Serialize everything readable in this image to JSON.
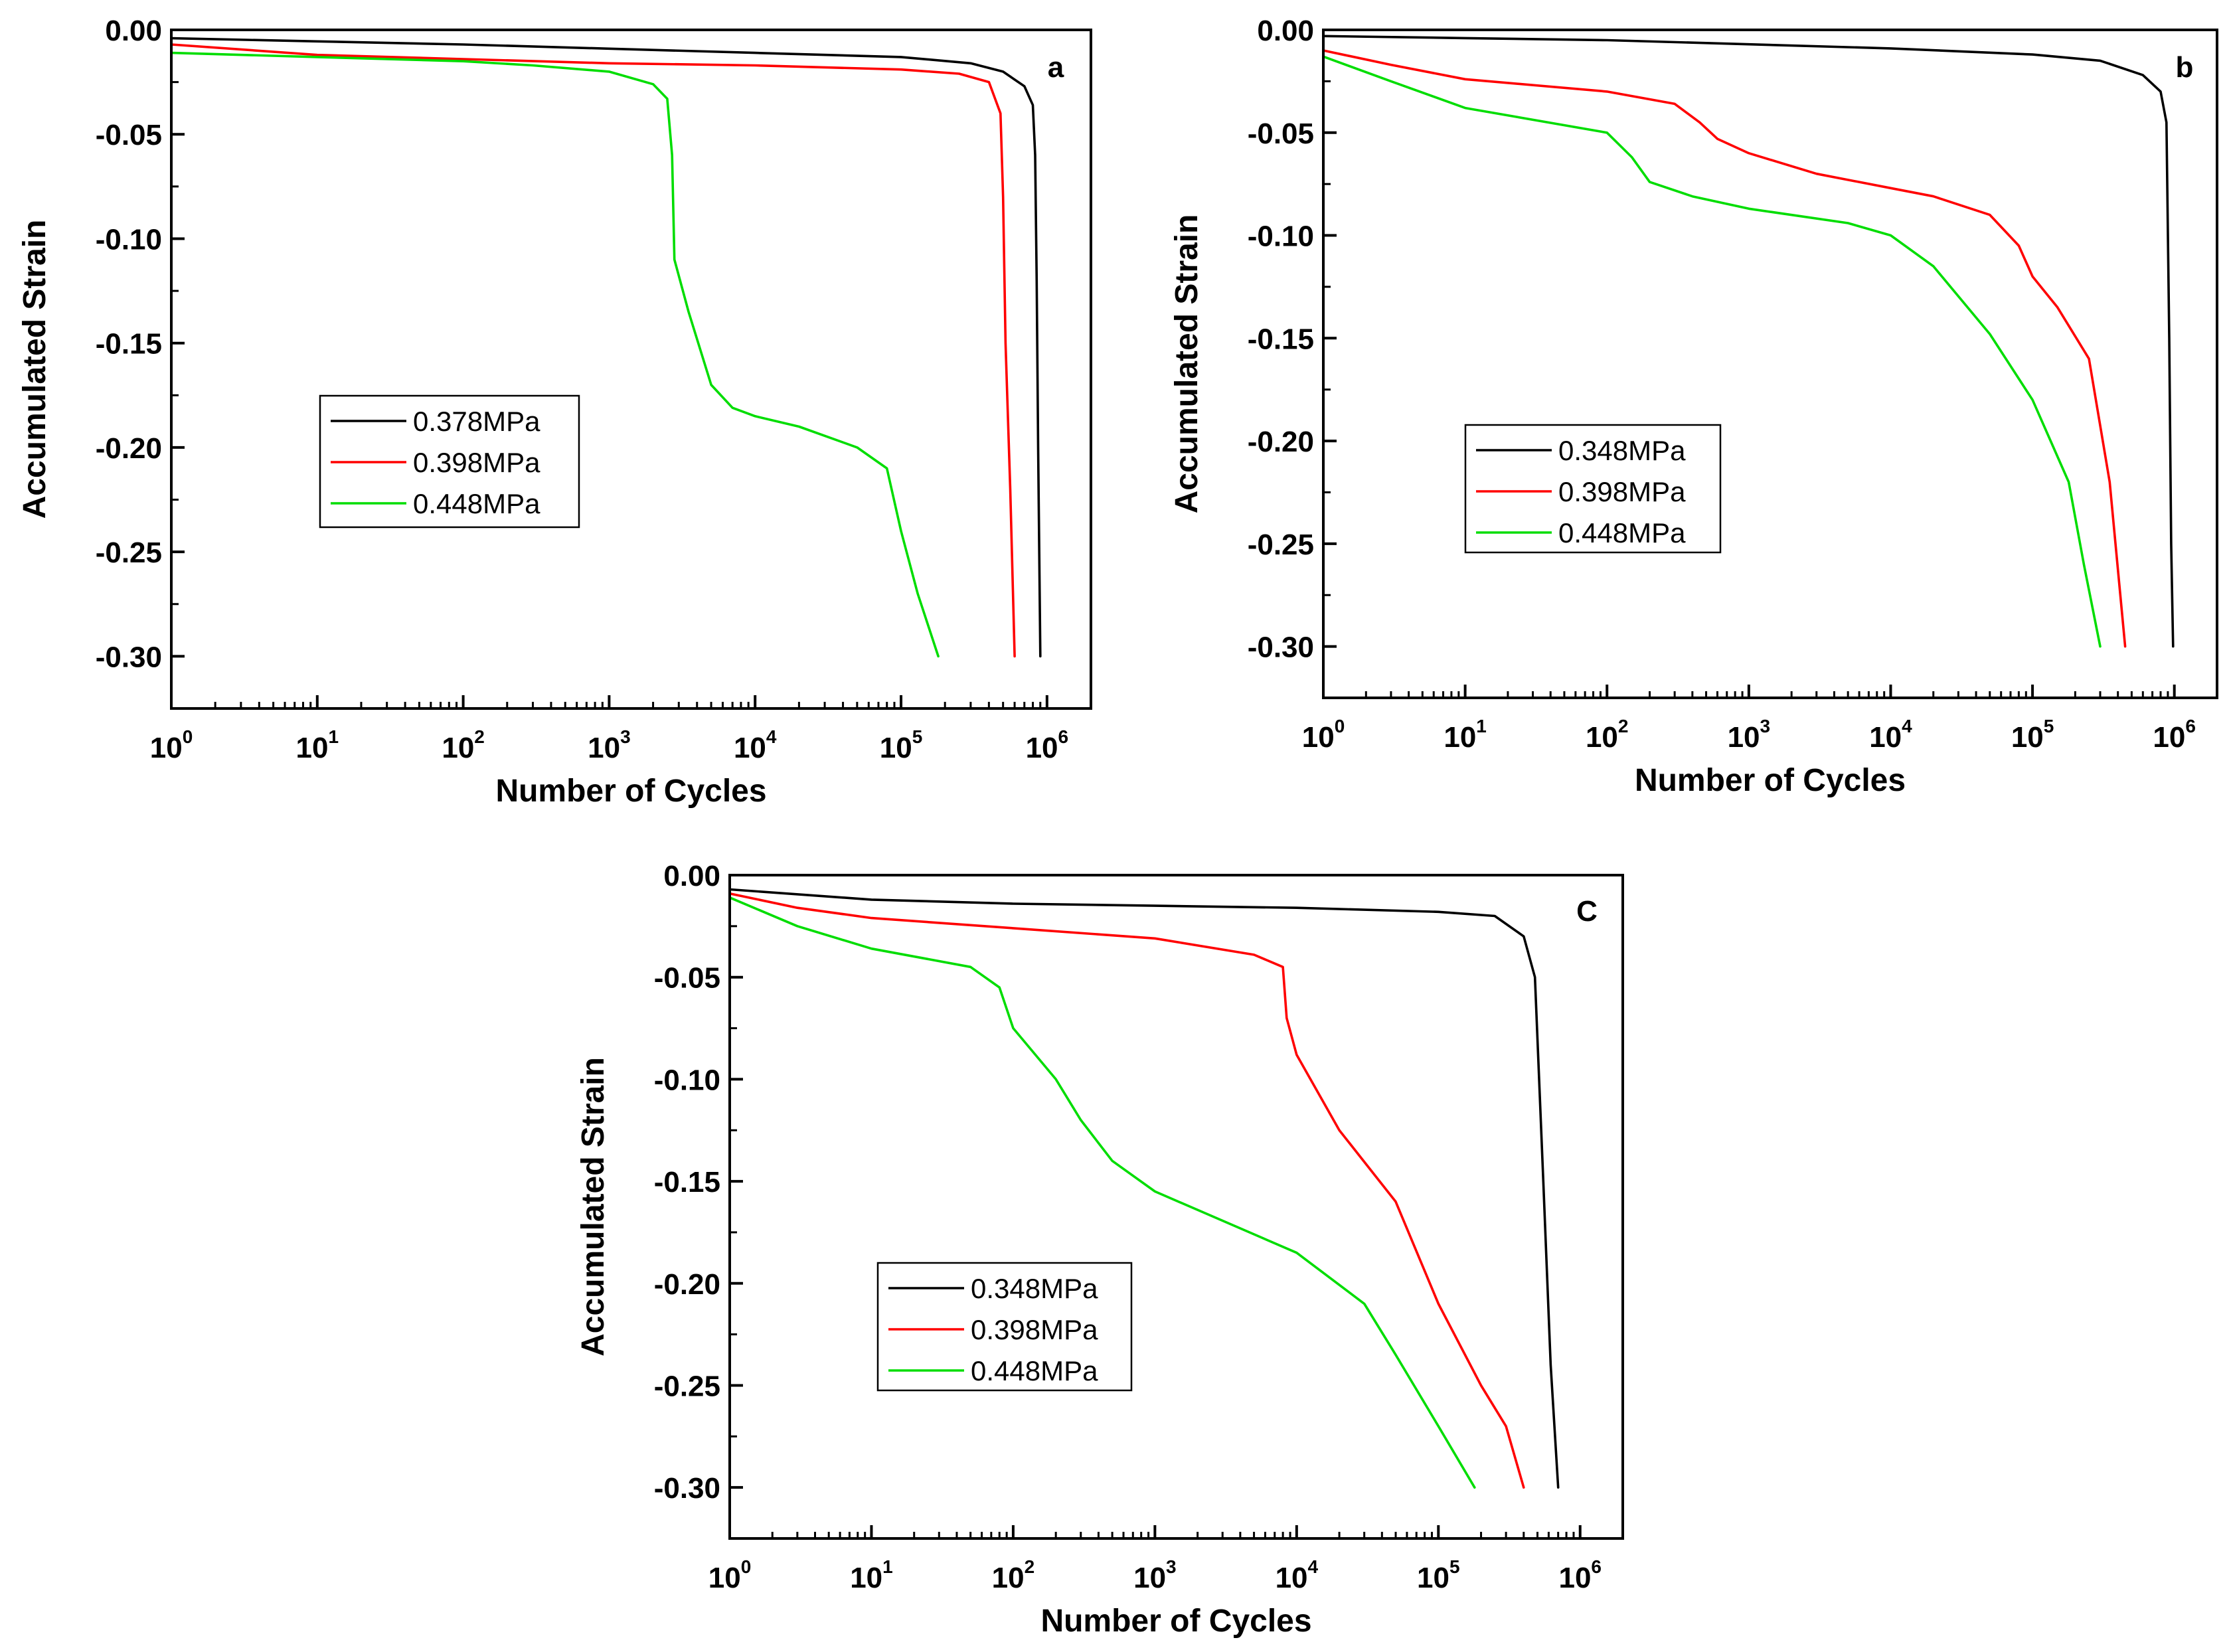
{
  "chart_data": [
    {
      "panel_label": "a",
      "type": "line",
      "xlabel": "Number of Cycles",
      "ylabel": "Accumulated Strain",
      "x_scale": "log",
      "xlim": [
        1,
        2000000
      ],
      "ylim": [
        -0.325,
        0.0
      ],
      "x_ticks": [
        {
          "value": 1,
          "base": "10",
          "exp": "0"
        },
        {
          "value": 10,
          "base": "10",
          "exp": "1"
        },
        {
          "value": 100,
          "base": "10",
          "exp": "2"
        },
        {
          "value": 1000,
          "base": "10",
          "exp": "3"
        },
        {
          "value": 10000,
          "base": "10",
          "exp": "4"
        },
        {
          "value": 100000,
          "base": "10",
          "exp": "5"
        },
        {
          "value": 1000000,
          "base": "10",
          "exp": "6"
        }
      ],
      "y_ticks": [
        {
          "value": 0.0,
          "label": "0.00"
        },
        {
          "value": -0.05,
          "label": "-0.05"
        },
        {
          "value": -0.1,
          "label": "-0.10"
        },
        {
          "value": -0.15,
          "label": "-0.15"
        },
        {
          "value": -0.2,
          "label": "-0.20"
        },
        {
          "value": -0.25,
          "label": "-0.25"
        },
        {
          "value": -0.3,
          "label": "-0.30"
        }
      ],
      "grid": false,
      "legend_position": "center-left",
      "series": [
        {
          "name": "0.378MPa",
          "color": "#000000",
          "points": [
            [
              1,
              -0.004
            ],
            [
              10,
              -0.0055
            ],
            [
              100,
              -0.007
            ],
            [
              1000,
              -0.009
            ],
            [
              10000,
              -0.011
            ],
            [
              100000,
              -0.013
            ],
            [
              300000,
              -0.016
            ],
            [
              500000,
              -0.02
            ],
            [
              700000,
              -0.027
            ],
            [
              800000,
              -0.036
            ],
            [
              830000,
              -0.06
            ],
            [
              850000,
              -0.12
            ],
            [
              870000,
              -0.2
            ],
            [
              900000,
              -0.3
            ]
          ]
        },
        {
          "name": "0.398MPa",
          "color": "#ff0000",
          "points": [
            [
              1,
              -0.007
            ],
            [
              10,
              -0.012
            ],
            [
              100,
              -0.014
            ],
            [
              1000,
              -0.016
            ],
            [
              10000,
              -0.017
            ],
            [
              100000,
              -0.019
            ],
            [
              250000,
              -0.021
            ],
            [
              400000,
              -0.025
            ],
            [
              480000,
              -0.04
            ],
            [
              500000,
              -0.08
            ],
            [
              520000,
              -0.15
            ],
            [
              560000,
              -0.22
            ],
            [
              600000,
              -0.3
            ]
          ]
        },
        {
          "name": "0.448MPa",
          "color": "#00dd00",
          "points": [
            [
              1,
              -0.011
            ],
            [
              10,
              -0.013
            ],
            [
              100,
              -0.015
            ],
            [
              300,
              -0.017
            ],
            [
              1000,
              -0.02
            ],
            [
              2000,
              -0.026
            ],
            [
              2500,
              -0.033
            ],
            [
              2700,
              -0.06
            ],
            [
              2800,
              -0.11
            ],
            [
              3500,
              -0.135
            ],
            [
              5000,
              -0.17
            ],
            [
              7000,
              -0.181
            ],
            [
              10000,
              -0.185
            ],
            [
              20000,
              -0.19
            ],
            [
              50000,
              -0.2
            ],
            [
              80000,
              -0.21
            ],
            [
              100000,
              -0.24
            ],
            [
              130000,
              -0.27
            ],
            [
              180000,
              -0.3
            ]
          ]
        }
      ]
    },
    {
      "panel_label": "b",
      "type": "line",
      "xlabel": "Number of Cycles",
      "ylabel": "Accumulated Strain",
      "x_scale": "log",
      "xlim": [
        1,
        2000000
      ],
      "ylim": [
        -0.325,
        0.0
      ],
      "x_ticks": [
        {
          "value": 1,
          "base": "10",
          "exp": "0"
        },
        {
          "value": 10,
          "base": "10",
          "exp": "1"
        },
        {
          "value": 100,
          "base": "10",
          "exp": "2"
        },
        {
          "value": 1000,
          "base": "10",
          "exp": "3"
        },
        {
          "value": 10000,
          "base": "10",
          "exp": "4"
        },
        {
          "value": 100000,
          "base": "10",
          "exp": "5"
        },
        {
          "value": 1000000,
          "base": "10",
          "exp": "6"
        }
      ],
      "y_ticks": [
        {
          "value": 0.0,
          "label": "0.00"
        },
        {
          "value": -0.05,
          "label": "-0.05"
        },
        {
          "value": -0.1,
          "label": "-0.10"
        },
        {
          "value": -0.15,
          "label": "-0.15"
        },
        {
          "value": -0.2,
          "label": "-0.20"
        },
        {
          "value": -0.25,
          "label": "-0.25"
        },
        {
          "value": -0.3,
          "label": "-0.30"
        }
      ],
      "grid": false,
      "legend_position": "center-left",
      "series": [
        {
          "name": "0.348MPa",
          "color": "#000000",
          "points": [
            [
              1,
              -0.003
            ],
            [
              10,
              -0.004
            ],
            [
              100,
              -0.005
            ],
            [
              1000,
              -0.007
            ],
            [
              10000,
              -0.009
            ],
            [
              100000,
              -0.012
            ],
            [
              300000,
              -0.015
            ],
            [
              600000,
              -0.022
            ],
            [
              800000,
              -0.03
            ],
            [
              880000,
              -0.045
            ],
            [
              920000,
              -0.15
            ],
            [
              950000,
              -0.25
            ],
            [
              980000,
              -0.3
            ]
          ]
        },
        {
          "name": "0.398MPa",
          "color": "#ff0000",
          "points": [
            [
              1,
              -0.01
            ],
            [
              3,
              -0.017
            ],
            [
              10,
              -0.024
            ],
            [
              100,
              -0.03
            ],
            [
              300,
              -0.036
            ],
            [
              450,
              -0.045
            ],
            [
              600,
              -0.053
            ],
            [
              1000,
              -0.06
            ],
            [
              3000,
              -0.07
            ],
            [
              10000,
              -0.077
            ],
            [
              20000,
              -0.081
            ],
            [
              50000,
              -0.09
            ],
            [
              80000,
              -0.105
            ],
            [
              100000,
              -0.12
            ],
            [
              150000,
              -0.135
            ],
            [
              250000,
              -0.16
            ],
            [
              350000,
              -0.22
            ],
            [
              450000,
              -0.3
            ]
          ]
        },
        {
          "name": "0.448MPa",
          "color": "#00dd00",
          "points": [
            [
              1,
              -0.013
            ],
            [
              3,
              -0.025
            ],
            [
              10,
              -0.038
            ],
            [
              100,
              -0.05
            ],
            [
              150,
              -0.062
            ],
            [
              200,
              -0.074
            ],
            [
              400,
              -0.081
            ],
            [
              1000,
              -0.087
            ],
            [
              5000,
              -0.094
            ],
            [
              10000,
              -0.1
            ],
            [
              20000,
              -0.115
            ],
            [
              50000,
              -0.148
            ],
            [
              100000,
              -0.18
            ],
            [
              180000,
              -0.22
            ],
            [
              230000,
              -0.26
            ],
            [
              300000,
              -0.3
            ]
          ]
        }
      ]
    },
    {
      "panel_label": "C",
      "type": "line",
      "xlabel": "Number of Cycles",
      "ylabel": "Accumulated Strain",
      "x_scale": "log",
      "xlim": [
        1,
        2000000
      ],
      "ylim": [
        -0.325,
        0.0
      ],
      "x_ticks": [
        {
          "value": 1,
          "base": "10",
          "exp": "0"
        },
        {
          "value": 10,
          "base": "10",
          "exp": "1"
        },
        {
          "value": 100,
          "base": "10",
          "exp": "2"
        },
        {
          "value": 1000,
          "base": "10",
          "exp": "3"
        },
        {
          "value": 10000,
          "base": "10",
          "exp": "4"
        },
        {
          "value": 100000,
          "base": "10",
          "exp": "5"
        },
        {
          "value": 1000000,
          "base": "10",
          "exp": "6"
        }
      ],
      "y_ticks": [
        {
          "value": 0.0,
          "label": "0.00"
        },
        {
          "value": -0.05,
          "label": "-0.05"
        },
        {
          "value": -0.1,
          "label": "-0.10"
        },
        {
          "value": -0.15,
          "label": "-0.15"
        },
        {
          "value": -0.2,
          "label": "-0.20"
        },
        {
          "value": -0.25,
          "label": "-0.25"
        },
        {
          "value": -0.3,
          "label": "-0.30"
        }
      ],
      "grid": false,
      "legend_position": "bottom-left",
      "series": [
        {
          "name": "0.348MPa",
          "color": "#000000",
          "points": [
            [
              1,
              -0.007
            ],
            [
              10,
              -0.012
            ],
            [
              100,
              -0.014
            ],
            [
              1000,
              -0.015
            ],
            [
              10000,
              -0.016
            ],
            [
              100000,
              -0.018
            ],
            [
              250000,
              -0.02
            ],
            [
              400000,
              -0.03
            ],
            [
              480000,
              -0.05
            ],
            [
              550000,
              -0.15
            ],
            [
              620000,
              -0.24
            ],
            [
              700000,
              -0.3
            ]
          ]
        },
        {
          "name": "0.398MPa",
          "color": "#ff0000",
          "points": [
            [
              1,
              -0.009
            ],
            [
              3,
              -0.016
            ],
            [
              10,
              -0.021
            ],
            [
              100,
              -0.026
            ],
            [
              1000,
              -0.031
            ],
            [
              5000,
              -0.039
            ],
            [
              8000,
              -0.045
            ],
            [
              8500,
              -0.07
            ],
            [
              10000,
              -0.088
            ],
            [
              20000,
              -0.125
            ],
            [
              50000,
              -0.16
            ],
            [
              100000,
              -0.21
            ],
            [
              200000,
              -0.25
            ],
            [
              300000,
              -0.27
            ],
            [
              400000,
              -0.3
            ]
          ]
        },
        {
          "name": "0.448MPa",
          "color": "#00dd00",
          "points": [
            [
              1,
              -0.011
            ],
            [
              3,
              -0.025
            ],
            [
              10,
              -0.036
            ],
            [
              50,
              -0.045
            ],
            [
              80,
              -0.055
            ],
            [
              100,
              -0.075
            ],
            [
              200,
              -0.1
            ],
            [
              300,
              -0.12
            ],
            [
              500,
              -0.14
            ],
            [
              1000,
              -0.155
            ],
            [
              10000,
              -0.185
            ],
            [
              30000,
              -0.21
            ],
            [
              50000,
              -0.235
            ],
            [
              100000,
              -0.27
            ],
            [
              180000,
              -0.3
            ]
          ]
        }
      ]
    }
  ]
}
